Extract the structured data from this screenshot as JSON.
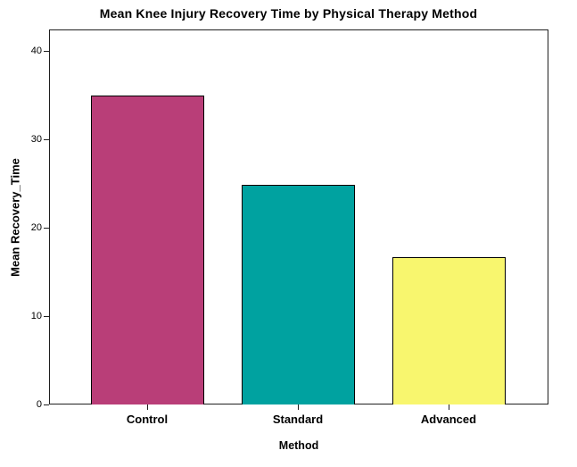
{
  "title": "Mean Knee Injury Recovery Time by Physical Therapy Method",
  "chart_data": {
    "type": "bar",
    "title": "Mean Knee Injury Recovery Time by Physical Therapy Method",
    "categories": [
      "Control",
      "Standard",
      "Advanced"
    ],
    "values": [
      34.9,
      24.8,
      16.7
    ],
    "xlabel": "Method",
    "ylabel": "Mean Recovery_Time",
    "ylim": [
      0,
      42.4
    ],
    "yticks": [
      0,
      10,
      20,
      30,
      40
    ],
    "bar_colors": [
      "#B93E78",
      "#00A2A0",
      "#F8F66E"
    ],
    "bar_border_color": "#000000",
    "frame_color": "#1F1F1F",
    "background_color": "#FFFFFF",
    "grid": false,
    "legend": null
  }
}
